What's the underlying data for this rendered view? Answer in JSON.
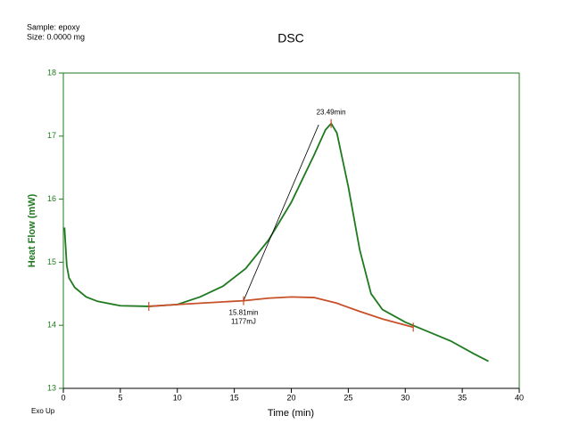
{
  "chart_data": {
    "type": "line",
    "title": "DSC",
    "info": [
      "Sample: epoxy",
      "Size:  0.0000 mg"
    ],
    "footnote": "Exo Up",
    "xlabel": "Time (min)",
    "ylabel": "Heat Flow (mW)",
    "xlim": [
      0,
      40
    ],
    "ylim": [
      13,
      18
    ],
    "xticks": [
      0,
      5,
      10,
      15,
      20,
      25,
      30,
      35,
      40
    ],
    "yticks": [
      13,
      14,
      15,
      16,
      17,
      18
    ],
    "annotations": [
      "23.49min",
      "15.81min",
      "1177mJ"
    ],
    "series": [
      {
        "color": "#1f7a1f",
        "style": "curve",
        "x": [
          0.1,
          0.3,
          0.5,
          1,
          2,
          3,
          5,
          7.5,
          10,
          12,
          14,
          16,
          18,
          20,
          22,
          23,
          23.5,
          24,
          25,
          26,
          27,
          28,
          30,
          32,
          34,
          36,
          37.3
        ],
        "values": [
          15.55,
          14.95,
          14.75,
          14.6,
          14.45,
          14.38,
          14.31,
          14.3,
          14.33,
          14.45,
          14.62,
          14.9,
          15.35,
          15.95,
          16.7,
          17.1,
          17.2,
          17.05,
          16.2,
          15.2,
          14.5,
          14.25,
          14.05,
          13.9,
          13.75,
          13.55,
          13.43
        ]
      },
      {
        "color": "#c8502a",
        "style": "curve",
        "x": [
          7.5,
          10,
          15.81,
          18,
          20,
          22,
          24,
          26,
          28,
          30.7
        ],
        "values": [
          14.3,
          14.33,
          14.39,
          14.43,
          14.45,
          14.44,
          14.35,
          14.22,
          14.1,
          13.97
        ]
      },
      {
        "color": "#000000",
        "style": "thin",
        "x": [
          15.81,
          22.4
        ],
        "values": [
          14.39,
          17.18
        ]
      },
      {
        "color": "#c8502a",
        "style": "ticks",
        "x": [
          7.5,
          15.81,
          23.49,
          30.7
        ],
        "values": [
          14.3,
          14.39,
          17.2,
          13.97
        ]
      }
    ]
  }
}
